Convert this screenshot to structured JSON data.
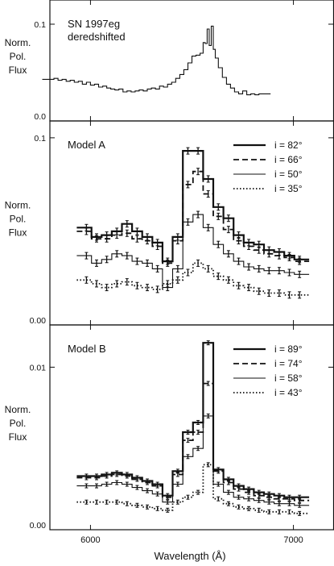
{
  "chart_data": [
    {
      "type": "line",
      "annotation": [
        "SN 1997eg",
        "deredshifted"
      ],
      "ylabel": [
        "Norm.",
        "Pol.",
        "Flux"
      ],
      "yticks": [
        {
          "label": "0.0",
          "value": 0.0
        },
        {
          "label": "0.1",
          "value": 0.1
        }
      ],
      "ylim": [
        0.0,
        0.125
      ],
      "legend": [],
      "series": [
        {
          "style": "solid-thin",
          "x": [
            5810,
            5830,
            5850,
            5870,
            5890,
            5910,
            5930,
            5950,
            5970,
            5990,
            6010,
            6030,
            6050,
            6070,
            6090,
            6110,
            6130,
            6150,
            6170,
            6190,
            6210,
            6230,
            6250,
            6270,
            6290,
            6310,
            6330,
            6350,
            6370,
            6390,
            6410,
            6430,
            6450,
            6470,
            6490,
            6510,
            6530,
            6550,
            6560,
            6570,
            6580,
            6590,
            6600,
            6610,
            6620,
            6640,
            6660,
            6680,
            6700,
            6720,
            6740,
            6760,
            6780,
            6800,
            6820,
            6840
          ],
          "y": [
            0.043,
            0.044,
            0.042,
            0.043,
            0.041,
            0.042,
            0.04,
            0.041,
            0.038,
            0.04,
            0.037,
            0.038,
            0.035,
            0.036,
            0.034,
            0.033,
            0.032,
            0.033,
            0.03,
            0.031,
            0.03,
            0.031,
            0.032,
            0.031,
            0.033,
            0.034,
            0.033,
            0.036,
            0.035,
            0.038,
            0.04,
            0.044,
            0.048,
            0.053,
            0.06,
            0.067,
            0.068,
            0.07,
            0.081,
            0.08,
            0.095,
            0.078,
            0.098,
            0.074,
            0.065,
            0.055,
            0.045,
            0.038,
            0.034,
            0.03,
            0.028,
            0.031,
            0.027,
            0.028,
            0.027,
            0.028
          ]
        }
      ]
    },
    {
      "type": "line",
      "annotation": [
        "Model A"
      ],
      "ylabel": [
        "Norm.",
        "Pol.",
        "Flux"
      ],
      "yticks": [
        {
          "label": "0.00",
          "value": 0.0
        },
        {
          "label": "0.1",
          "value": 0.1
        }
      ],
      "ylim": [
        0.0,
        0.109
      ],
      "legend": [
        {
          "label": "i = 82°",
          "style": "solid-thick"
        },
        {
          "label": "i = 66°",
          "style": "dashed"
        },
        {
          "label": "i = 50°",
          "style": "solid-thin"
        },
        {
          "label": "i = 35°",
          "style": "dotted"
        }
      ],
      "series": [
        {
          "style": "solid-thick",
          "x": [
            5980,
            6030,
            6080,
            6130,
            6180,
            6230,
            6280,
            6330,
            6380,
            6430,
            6480,
            6530,
            6580,
            6630,
            6680,
            6730,
            6780,
            6830,
            6880,
            6930,
            6980,
            7030
          ],
          "y": [
            0.052,
            0.047,
            0.048,
            0.05,
            0.054,
            0.05,
            0.047,
            0.044,
            0.034,
            0.047,
            0.093,
            0.093,
            0.078,
            0.063,
            0.057,
            0.048,
            0.044,
            0.043,
            0.04,
            0.039,
            0.037,
            0.035
          ]
        },
        {
          "style": "dashed",
          "x": [
            5980,
            6030,
            6080,
            6130,
            6180,
            6230,
            6280,
            6330,
            6380,
            6430,
            6480,
            6530,
            6580,
            6630,
            6680,
            6730,
            6780,
            6830,
            6880,
            6930,
            6980,
            7030
          ],
          "y": [
            0.05,
            0.046,
            0.046,
            0.048,
            0.049,
            0.046,
            0.045,
            0.042,
            0.033,
            0.045,
            0.075,
            0.082,
            0.07,
            0.058,
            0.051,
            0.045,
            0.042,
            0.04,
            0.038,
            0.037,
            0.036,
            0.034
          ]
        },
        {
          "style": "solid-thin",
          "x": [
            5980,
            6030,
            6080,
            6130,
            6180,
            6230,
            6280,
            6330,
            6380,
            6430,
            6480,
            6530,
            6580,
            6630,
            6680,
            6730,
            6780,
            6830,
            6880,
            6930,
            6980,
            7030
          ],
          "y": [
            0.037,
            0.033,
            0.035,
            0.038,
            0.037,
            0.034,
            0.033,
            0.03,
            0.02,
            0.03,
            0.055,
            0.059,
            0.052,
            0.043,
            0.038,
            0.034,
            0.031,
            0.03,
            0.029,
            0.029,
            0.028,
            0.027
          ]
        },
        {
          "style": "dotted",
          "x": [
            5980,
            6030,
            6080,
            6130,
            6180,
            6230,
            6280,
            6330,
            6380,
            6430,
            6480,
            6530,
            6580,
            6630,
            6680,
            6730,
            6780,
            6830,
            6880,
            6930,
            6980,
            7030
          ],
          "y": [
            0.024,
            0.022,
            0.02,
            0.022,
            0.023,
            0.021,
            0.02,
            0.019,
            0.022,
            0.024,
            0.028,
            0.033,
            0.03,
            0.026,
            0.024,
            0.021,
            0.02,
            0.018,
            0.017,
            0.017,
            0.016,
            0.016
          ]
        }
      ]
    },
    {
      "type": "line",
      "annotation": [
        "Model B"
      ],
      "ylabel": [
        "Norm.",
        "Pol.",
        "Flux"
      ],
      "yticks": [
        {
          "label": "0.00",
          "value": 0.0
        },
        {
          "label": "0.01",
          "value": 0.01
        }
      ],
      "ylim": [
        0.0,
        0.0126
      ],
      "legend": [
        {
          "label": "i = 89°",
          "style": "solid-thick"
        },
        {
          "label": "i = 74°",
          "style": "dashed"
        },
        {
          "label": "i = 58°",
          "style": "solid-thin"
        },
        {
          "label": "i = 43°",
          "style": "dotted"
        }
      ],
      "series": [
        {
          "style": "solid-thick",
          "x": [
            5980,
            6030,
            6080,
            6130,
            6180,
            6230,
            6280,
            6330,
            6380,
            6430,
            6480,
            6530,
            6580,
            6630,
            6680,
            6730,
            6780,
            6830,
            6880,
            6930,
            6980,
            7030
          ],
          "y": [
            0.0033,
            0.0033,
            0.0034,
            0.0035,
            0.0034,
            0.0032,
            0.003,
            0.0028,
            0.0021,
            0.0036,
            0.006,
            0.0066,
            0.0115,
            0.0037,
            0.0031,
            0.0027,
            0.0025,
            0.0023,
            0.0022,
            0.0021,
            0.002,
            0.002
          ]
        },
        {
          "style": "dashed",
          "x": [
            5980,
            6030,
            6080,
            6130,
            6180,
            6230,
            6280,
            6330,
            6380,
            6430,
            6480,
            6530,
            6580,
            6630,
            6680,
            6730,
            6780,
            6830,
            6880,
            6930,
            6980,
            7030
          ],
          "y": [
            0.0032,
            0.0032,
            0.0033,
            0.0034,
            0.0033,
            0.0031,
            0.0029,
            0.0027,
            0.002,
            0.0034,
            0.0055,
            0.006,
            0.009,
            0.0036,
            0.0029,
            0.0025,
            0.0023,
            0.0021,
            0.002,
            0.0019,
            0.0019,
            0.0018
          ]
        },
        {
          "style": "solid-thin",
          "x": [
            5980,
            6030,
            6080,
            6130,
            6180,
            6230,
            6280,
            6330,
            6380,
            6430,
            6480,
            6530,
            6580,
            6630,
            6680,
            6730,
            6780,
            6830,
            6880,
            6930,
            6980,
            7030
          ],
          "y": [
            0.0027,
            0.0027,
            0.0028,
            0.0029,
            0.0028,
            0.0026,
            0.0024,
            0.0022,
            0.0017,
            0.0028,
            0.0045,
            0.005,
            0.007,
            0.0028,
            0.0023,
            0.002,
            0.0019,
            0.0018,
            0.0017,
            0.0016,
            0.0016,
            0.0015
          ]
        },
        {
          "style": "dotted",
          "x": [
            5980,
            6030,
            6080,
            6130,
            6180,
            6230,
            6280,
            6330,
            6380,
            6430,
            6480,
            6530,
            6580,
            6630,
            6680,
            6730,
            6780,
            6830,
            6880,
            6930,
            6980,
            7030
          ],
          "y": [
            0.0017,
            0.0017,
            0.0017,
            0.0017,
            0.0016,
            0.0015,
            0.0014,
            0.0013,
            0.0012,
            0.0017,
            0.002,
            0.0023,
            0.004,
            0.0019,
            0.0016,
            0.0014,
            0.0013,
            0.0012,
            0.0011,
            0.0011,
            0.0011,
            0.001
          ]
        }
      ]
    }
  ],
  "xaxis": {
    "xlim": [
      5800,
      7200
    ],
    "ticks": [
      {
        "label": "6000",
        "value": 6000
      },
      {
        "label": "7000",
        "value": 7000
      }
    ],
    "xlabel": "Wavelength (Å)"
  }
}
